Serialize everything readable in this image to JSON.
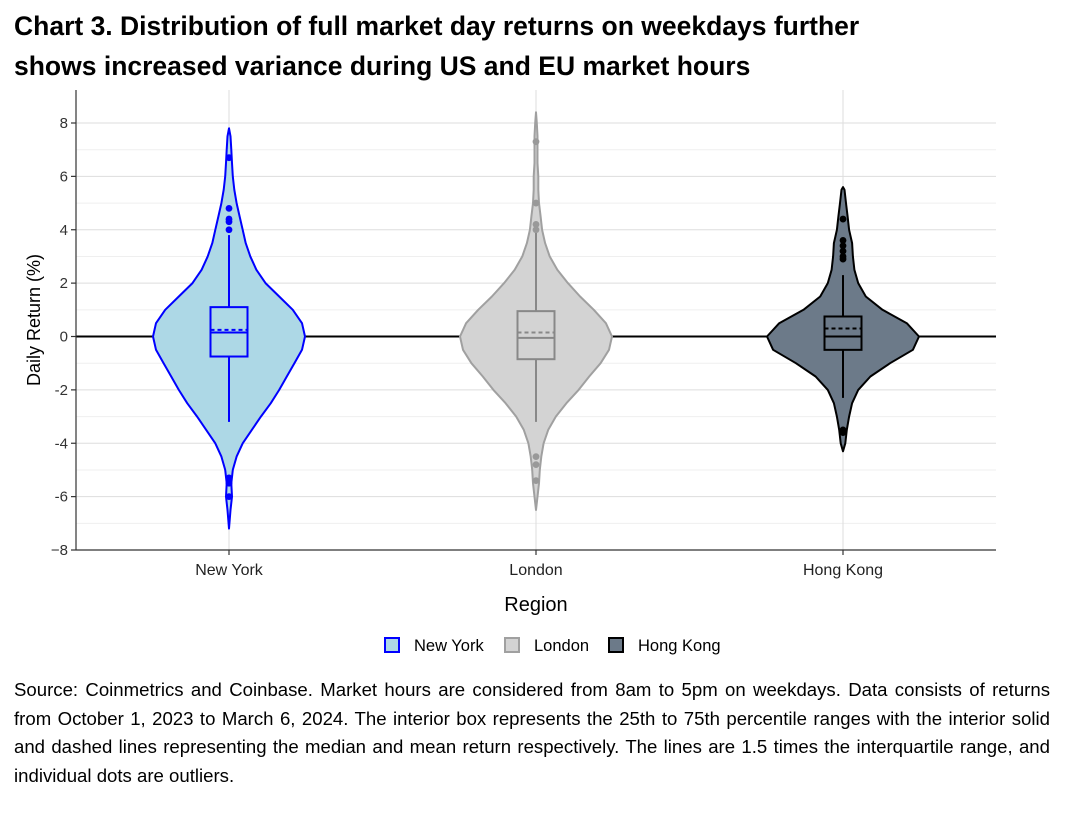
{
  "title_line1": "Chart 3. Distribution of full market day returns on weekdays further",
  "title_line2": "shows increased variance during US and EU market hours",
  "footnote": "Source: Coinmetrics and Coinbase. Market hours are considered from 8am to 5pm on weekdays. Data consists of returns from October 1, 2023 to March 6, 2024. The interior box represents the 25th to 75th percentile ranges with the interior solid and dashed lines representing the median and mean return respectively. The lines are 1.5 times the interquartile range, and individual dots are outliers.",
  "chart_data": {
    "type": "violin",
    "xlabel": "Region",
    "ylabel": "Daily Return (%)",
    "ylim": [
      -8,
      8
    ],
    "yticks": [
      8,
      6,
      4,
      2,
      0,
      -2,
      -4,
      -6,
      -8
    ],
    "ytick_labels": [
      "8",
      "6",
      "4",
      "2",
      "0",
      "-2",
      "-4",
      "-6",
      "−8"
    ],
    "grid": true,
    "zero_line": true,
    "legend_position": "bottom",
    "categories": [
      "New York",
      "London",
      "Hong Kong"
    ],
    "series": [
      {
        "name": "New York",
        "fill": "#add8e6",
        "stroke": "#0000ff",
        "box_stroke": "#0000ff",
        "dot_color": "#0000ff",
        "q1": -0.75,
        "median": 0.15,
        "q3": 1.1,
        "mean": 0.25,
        "whisker_low": -3.2,
        "whisker_high": 3.8,
        "min": -7.2,
        "max": 7.8,
        "outliers": [
          6.7,
          4.8,
          4.4,
          4.3,
          4.0,
          -5.3,
          -5.5,
          -6.0
        ],
        "density": [
          [
            -7.2,
            0
          ],
          [
            -6.5,
            0.02
          ],
          [
            -6,
            0.04
          ],
          [
            -5.5,
            0.03
          ],
          [
            -5,
            0.05
          ],
          [
            -4.5,
            0.1
          ],
          [
            -4,
            0.18
          ],
          [
            -3.5,
            0.3
          ],
          [
            -3,
            0.42
          ],
          [
            -2.5,
            0.55
          ],
          [
            -2,
            0.66
          ],
          [
            -1.5,
            0.76
          ],
          [
            -1,
            0.86
          ],
          [
            -0.5,
            0.96
          ],
          [
            0,
            1.0
          ],
          [
            0.5,
            0.96
          ],
          [
            1,
            0.84
          ],
          [
            1.5,
            0.66
          ],
          [
            2,
            0.48
          ],
          [
            2.5,
            0.36
          ],
          [
            3,
            0.28
          ],
          [
            3.5,
            0.22
          ],
          [
            4,
            0.18
          ],
          [
            4.5,
            0.14
          ],
          [
            5,
            0.1
          ],
          [
            5.5,
            0.07
          ],
          [
            6,
            0.05
          ],
          [
            6.5,
            0.04
          ],
          [
            7,
            0.03
          ],
          [
            7.5,
            0.02
          ],
          [
            7.8,
            0
          ]
        ]
      },
      {
        "name": "London",
        "fill": "#d3d3d3",
        "stroke": "#a0a0a0",
        "box_stroke": "#888888",
        "dot_color": "#999999",
        "q1": -0.85,
        "median": -0.05,
        "q3": 0.95,
        "mean": 0.15,
        "whisker_low": -3.2,
        "whisker_high": 3.9,
        "min": -6.5,
        "max": 8.4,
        "outliers": [
          7.3,
          5.0,
          4.2,
          4.0,
          -4.5,
          -4.8,
          -5.4
        ],
        "density": [
          [
            -6.5,
            0
          ],
          [
            -6,
            0.02
          ],
          [
            -5.5,
            0.04
          ],
          [
            -5,
            0.05
          ],
          [
            -4.5,
            0.07
          ],
          [
            -4,
            0.1
          ],
          [
            -3.5,
            0.16
          ],
          [
            -3,
            0.26
          ],
          [
            -2.5,
            0.4
          ],
          [
            -2,
            0.56
          ],
          [
            -1.5,
            0.7
          ],
          [
            -1,
            0.85
          ],
          [
            -0.5,
            0.96
          ],
          [
            0,
            1.0
          ],
          [
            0.5,
            0.92
          ],
          [
            1,
            0.76
          ],
          [
            1.5,
            0.58
          ],
          [
            2,
            0.42
          ],
          [
            2.5,
            0.28
          ],
          [
            3,
            0.18
          ],
          [
            3.5,
            0.12
          ],
          [
            4,
            0.08
          ],
          [
            4.5,
            0.06
          ],
          [
            5,
            0.04
          ],
          [
            5.5,
            0.03
          ],
          [
            6,
            0.03
          ],
          [
            6.5,
            0.02
          ],
          [
            7,
            0.02
          ],
          [
            7.5,
            0.02
          ],
          [
            8,
            0.01
          ],
          [
            8.4,
            0
          ]
        ]
      },
      {
        "name": "Hong Kong",
        "fill": "#6c7a89",
        "stroke": "#000000",
        "box_stroke": "#000000",
        "dot_color": "#000000",
        "q1": -0.5,
        "median": 0.0,
        "q3": 0.75,
        "mean": 0.3,
        "whisker_low": -2.3,
        "whisker_high": 2.3,
        "min": -4.3,
        "max": 5.6,
        "outliers": [
          4.4,
          3.6,
          3.4,
          3.2,
          3.0,
          2.9,
          -3.5,
          -3.6
        ],
        "density": [
          [
            -4.3,
            0
          ],
          [
            -4,
            0.03
          ],
          [
            -3.5,
            0.05
          ],
          [
            -3,
            0.08
          ],
          [
            -2.5,
            0.12
          ],
          [
            -2,
            0.2
          ],
          [
            -1.5,
            0.36
          ],
          [
            -1,
            0.62
          ],
          [
            -0.5,
            0.92
          ],
          [
            0,
            1.0
          ],
          [
            0.5,
            0.84
          ],
          [
            1,
            0.52
          ],
          [
            1.5,
            0.3
          ],
          [
            2,
            0.2
          ],
          [
            2.5,
            0.15
          ],
          [
            3,
            0.13
          ],
          [
            3.5,
            0.12
          ],
          [
            4,
            0.08
          ],
          [
            4.5,
            0.06
          ],
          [
            5,
            0.04
          ],
          [
            5.5,
            0.02
          ],
          [
            5.6,
            0
          ]
        ]
      }
    ]
  }
}
